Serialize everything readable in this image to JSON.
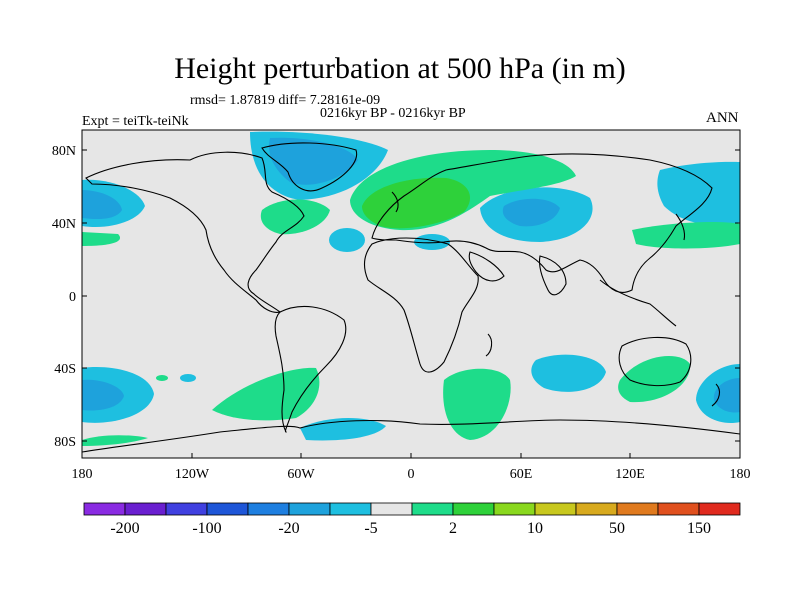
{
  "title": "Height perturbation at 500 hPa (in m)",
  "stats": "rmsd= 1.87819 diff= 7.28161e-09",
  "period": "0216kyr BP - 0216kyr BP",
  "experiment": "Expt = teiTk-teiNk",
  "season": "ANN",
  "y_ticks": [
    "80N",
    "40N",
    "0",
    "40S",
    "80S"
  ],
  "x_ticks": [
    "180",
    "120W",
    "60W",
    "0",
    "60E",
    "120E",
    "180"
  ],
  "colorbar": {
    "labels": [
      "-200",
      "-100",
      "-20",
      "-5",
      "2",
      "10",
      "50",
      "150"
    ],
    "colors": [
      "#8a2be2",
      "#6a1fd0",
      "#4040e0",
      "#1e56d8",
      "#1e7fe0",
      "#1ea2dc",
      "#1ebfe0",
      "#e6e6e6",
      "#1edc8a",
      "#2ed13a",
      "#8ad81e",
      "#c8c81e",
      "#d8aa1e",
      "#e07a1e",
      "#e0501e",
      "#e02a1e"
    ]
  },
  "colors": {
    "background": "#e6e6e6",
    "neg_light": "#1ebfe0",
    "neg_mid": "#1ea2dc",
    "pos_light": "#1edc8a",
    "pos_mid": "#2ed13a"
  }
}
